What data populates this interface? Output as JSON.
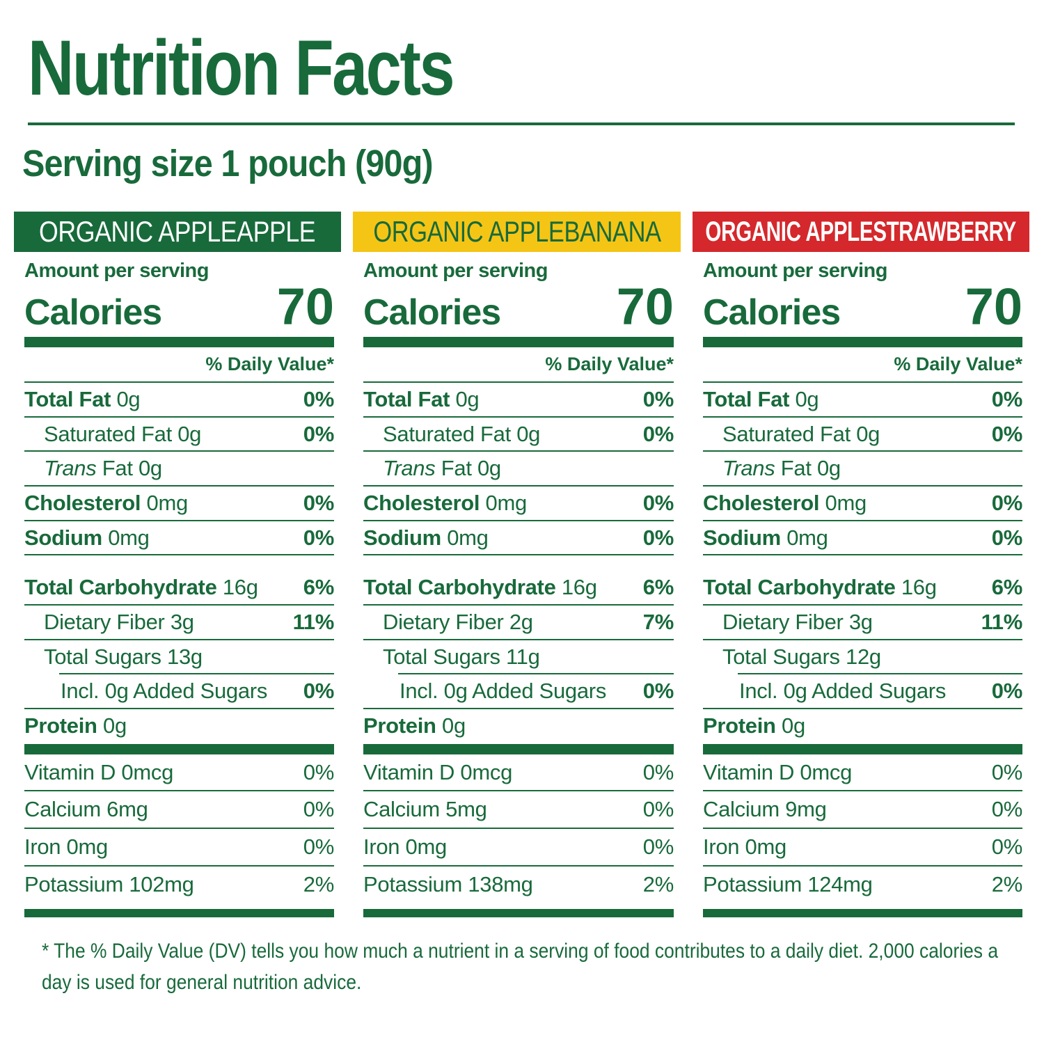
{
  "title": "Nutrition Facts",
  "serving_size": "Serving size 1 pouch (90g)",
  "colors": {
    "green": "#186A3B",
    "yellow": "#F5C515",
    "red": "#D4282C",
    "white": "#FFFFFF"
  },
  "shared": {
    "amount_per_serving": "Amount per serving",
    "calories_label": "Calories",
    "daily_value_header": "% Daily Value*"
  },
  "footnote_lines": [
    "* The % Daily Value (DV) tells you how much a nutrient in a serving of food contributes to a daily diet. 2,000 calories a",
    "day is used for general nutrition advice."
  ],
  "columns": [
    {
      "banner": {
        "text": "ORGANIC APPLEAPPLE",
        "bg": "#186A3B",
        "fg": "#FFFFFF"
      },
      "calories": "70",
      "rows": [
        {
          "b": "Total Fat",
          "i": "",
          "r": " 0g",
          "v": "0%"
        },
        {
          "b": "",
          "i": "",
          "r": "Saturated Fat 0g",
          "v": "0%"
        },
        {
          "b": "",
          "i": "Trans",
          "r": " Fat 0g",
          "v": ""
        },
        {
          "b": "Cholesterol",
          "i": "",
          "r": " 0mg",
          "v": "0%"
        },
        {
          "b": "Sodium",
          "i": "",
          "r": " 0mg",
          "v": "0%"
        },
        {
          "b": "Total Carbohydrate",
          "i": "",
          "r": " 16g",
          "v": "6%"
        },
        {
          "b": "",
          "i": "",
          "r": "Dietary Fiber 3g",
          "v": "11%"
        },
        {
          "b": "",
          "i": "",
          "r": "Total Sugars 13g",
          "v": ""
        },
        {
          "b": "",
          "i": "",
          "r": "Incl. 0g Added Sugars",
          "v": "0%"
        },
        {
          "b": "Protein",
          "i": "",
          "r": " 0g",
          "v": ""
        }
      ],
      "vitamins": [
        {
          "label": "Vitamin D 0mcg",
          "value": "0%"
        },
        {
          "label": "Calcium 6mg",
          "value": "0%"
        },
        {
          "label": "Iron 0mg",
          "value": "0%"
        },
        {
          "label": "Potassium 102mg",
          "value": "2%"
        }
      ]
    },
    {
      "banner": {
        "text": "ORGANIC APPLEBANANA",
        "bg": "#F5C515",
        "fg": "#186A3B"
      },
      "calories": "70",
      "rows": [
        {
          "b": "Total Fat",
          "i": "",
          "r": " 0g",
          "v": "0%"
        },
        {
          "b": "",
          "i": "",
          "r": "Saturated Fat 0g",
          "v": "0%"
        },
        {
          "b": "",
          "i": "Trans",
          "r": " Fat 0g",
          "v": ""
        },
        {
          "b": "Cholesterol",
          "i": "",
          "r": " 0mg",
          "v": "0%"
        },
        {
          "b": "Sodium",
          "i": "",
          "r": " 0mg",
          "v": "0%"
        },
        {
          "b": "Total Carbohydrate",
          "i": "",
          "r": " 16g",
          "v": "6%"
        },
        {
          "b": "",
          "i": "",
          "r": "Dietary Fiber 2g",
          "v": "7%"
        },
        {
          "b": "",
          "i": "",
          "r": "Total Sugars 11g",
          "v": ""
        },
        {
          "b": "",
          "i": "",
          "r": "Incl. 0g Added Sugars",
          "v": "0%"
        },
        {
          "b": "Protein",
          "i": "",
          "r": " 0g",
          "v": ""
        }
      ],
      "vitamins": [
        {
          "label": "Vitamin D 0mcg",
          "value": "0%"
        },
        {
          "label": "Calcium 5mg",
          "value": "0%"
        },
        {
          "label": "Iron 0mg",
          "value": "0%"
        },
        {
          "label": "Potassium 138mg",
          "value": "2%"
        }
      ]
    },
    {
      "banner": {
        "text": "ORGANIC APPLESTRAWBERRY",
        "bg": "#D4282C",
        "fg": "#FFFFFF"
      },
      "calories": "70",
      "rows": [
        {
          "b": "Total Fat",
          "i": "",
          "r": " 0g",
          "v": "0%"
        },
        {
          "b": "",
          "i": "",
          "r": "Saturated Fat 0g",
          "v": "0%"
        },
        {
          "b": "",
          "i": "Trans",
          "r": " Fat 0g",
          "v": ""
        },
        {
          "b": "Cholesterol",
          "i": "",
          "r": " 0mg",
          "v": "0%"
        },
        {
          "b": "Sodium",
          "i": "",
          "r": " 0mg",
          "v": "0%"
        },
        {
          "b": "Total Carbohydrate",
          "i": "",
          "r": " 16g",
          "v": "6%"
        },
        {
          "b": "",
          "i": "",
          "r": "Dietary Fiber 3g",
          "v": "11%"
        },
        {
          "b": "",
          "i": "",
          "r": "Total Sugars 12g",
          "v": ""
        },
        {
          "b": "",
          "i": "",
          "r": "Incl. 0g Added Sugars",
          "v": "0%"
        },
        {
          "b": "Protein",
          "i": "",
          "r": " 0g",
          "v": ""
        }
      ],
      "vitamins": [
        {
          "label": "Vitamin D 0mcg",
          "value": "0%"
        },
        {
          "label": "Calcium 9mg",
          "value": "0%"
        },
        {
          "label": "Iron 0mg",
          "value": "0%"
        },
        {
          "label": "Potassium 124mg",
          "value": "2%"
        }
      ]
    }
  ]
}
